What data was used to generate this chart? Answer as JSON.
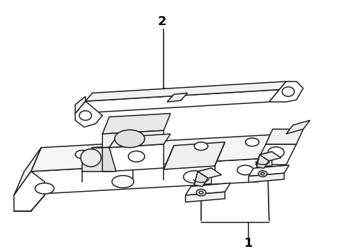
{
  "bg_color": "#ffffff",
  "line_color": "#1a1a1a",
  "label_color": "#000000",
  "line_width": 1.1,
  "figsize": [
    4.9,
    3.6
  ],
  "dpi": 100
}
